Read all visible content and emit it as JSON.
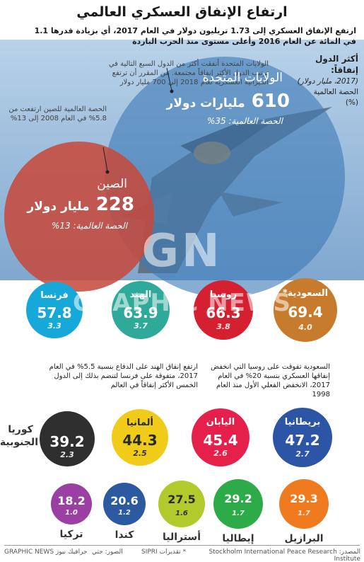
{
  "title": "ارتفاع الإنفاق العسكري العالمي",
  "subtitle": "ارتفع الإنفاق العسكري إلى 1.73 تريليون دولار في العام 2017، أي بزيادة قدرها 1.1 في المائة عن العام 2016 وأعلى مستوى منذ الحرب الباردة",
  "legend": {
    "heading": "أكثر الدول إنفاقاً:",
    "unit": "(2017، مليار دولار)",
    "share_label": "الحصة العالمية",
    "share_unit": "(%)"
  },
  "notes": {
    "usa": "الولايات المتحدة أنفقت أكثر من الدول السبع التالية في ترتيب الدول الأكثر إنفاقاً مجتمعة. من المقرر أن ترتفع الميزانية العسكرية لعام 2018 إلى 700 مليار دولار",
    "china": "الحصة العالمية للصين ارتفعت من 5.8% في العام 2008 إلى 13%",
    "india": "ارتفع إنفاق الهند على الدفاع بنسبة 5.5% في العام 2017، متفوقة على فرنسا لتنضم بذلك إلى الدول الخمس الأكثر إنفاقاً في العالم",
    "saudi": "السعودية تفوقت على روسيا التي انخفض إنفاقها العسكري بنسبة 20% في العام 2017، الانخفض الفعلي الأول منذ العام 1998"
  },
  "footer": {
    "source": "المصدر: Stockholm International Peace Research Institute",
    "estimate": "* تقديرات SIPRI",
    "photo": "الصور: جتي",
    "credit": "GRAPHIC NEWS جرافيك نيوز"
  },
  "watermark": {
    "logo": "GN",
    "text": "GRAPHIC NEWS"
  },
  "chart_data": {
    "type": "bubble",
    "title": "ارتفاع الإنفاق العسكري العالمي",
    "value_unit": "مليار دولار",
    "share_unit": "%",
    "countries": [
      {
        "name": "الولايات المتحدة",
        "value": 610,
        "value_label": "610",
        "value_suffix": "مليارات دولار",
        "share_label": "الحصة العالمية: 35%",
        "share": 35,
        "color": "#3e7bb6"
      },
      {
        "name": "الصين",
        "value": 228,
        "value_label": "228",
        "value_suffix": "مليار دولار",
        "share_label": "الحصة العالمية: 13%",
        "share": 13,
        "color": "#c7483a"
      },
      {
        "name": "السعودية*",
        "value": 69.4,
        "value_label": "69.4",
        "share": 4.0,
        "share_label": "4.0",
        "color": "#c67c2c"
      },
      {
        "name": "روسيا",
        "value": 66.3,
        "value_label": "66.3",
        "share": 3.8,
        "share_label": "3.8",
        "color": "#d52031"
      },
      {
        "name": "الهند",
        "value": 63.9,
        "value_label": "63.9",
        "share": 3.7,
        "share_label": "3.7",
        "color": "#2ea99a"
      },
      {
        "name": "فرنسا",
        "value": 57.8,
        "value_label": "57.8",
        "share": 3.3,
        "share_label": "3.3",
        "color": "#15a8d8"
      },
      {
        "name": "بريطانيا",
        "value": 47.2,
        "value_label": "47.2",
        "share": 2.7,
        "share_label": "2.7",
        "color": "#2c56a5"
      },
      {
        "name": "اليابان",
        "value": 45.4,
        "value_label": "45.4",
        "share": 2.6,
        "share_label": "2.6",
        "color": "#e5214b"
      },
      {
        "name": "ألمانيا",
        "value": 44.3,
        "value_label": "44.3",
        "share": 2.5,
        "share_label": "2.5",
        "color": "#f1cb19"
      },
      {
        "name": "كوريا الجنوبية",
        "value": 39.2,
        "value_label": "39.2",
        "share": 2.3,
        "share_label": "2.3",
        "color": "#2f2f2f"
      },
      {
        "name": "البرازيل",
        "value": 29.3,
        "value_label": "29.3",
        "share": 1.7,
        "share_label": "1.7",
        "color": "#f07a1e"
      },
      {
        "name": "إيطاليا",
        "value": 29.2,
        "value_label": "29.2",
        "share": 1.7,
        "share_label": "1.7",
        "color": "#2eab49"
      },
      {
        "name": "أستراليا",
        "value": 27.5,
        "value_label": "27.5",
        "share": 1.6,
        "share_label": "1.6",
        "color": "#b2ca2c"
      },
      {
        "name": "كندا",
        "value": 20.6,
        "value_label": "20.6",
        "share": 1.2,
        "share_label": "1.2",
        "color": "#2c5aa0"
      },
      {
        "name": "تركيا",
        "value": 18.2,
        "value_label": "18.2",
        "share": 1.0,
        "share_label": "1.0",
        "color": "#9c3fa3"
      }
    ]
  }
}
